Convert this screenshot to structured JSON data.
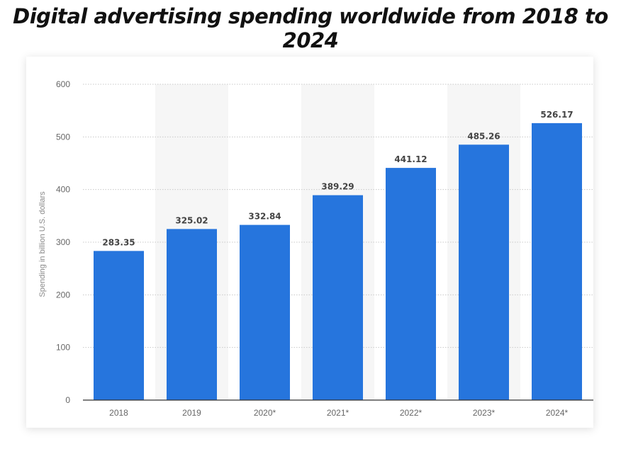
{
  "chart_data": {
    "type": "bar",
    "title": "Digital advertising spending worldwide from 2018 to 2024",
    "xlabel": "",
    "ylabel": "Spending in billion U.S. dollars",
    "categories": [
      "2018",
      "2019",
      "2020*",
      "2021*",
      "2022*",
      "2023*",
      "2024*"
    ],
    "values": [
      283.35,
      325.02,
      332.84,
      389.29,
      441.12,
      485.26,
      526.17
    ],
    "value_labels": [
      "283.35",
      "325.02",
      "332.84",
      "389.29",
      "441.12",
      "485.26",
      "526.17"
    ],
    "ylim": [
      0,
      600
    ],
    "yticks": [
      0,
      100,
      200,
      300,
      400,
      500,
      600
    ],
    "grid": true,
    "bar_color": "#2675dd"
  }
}
